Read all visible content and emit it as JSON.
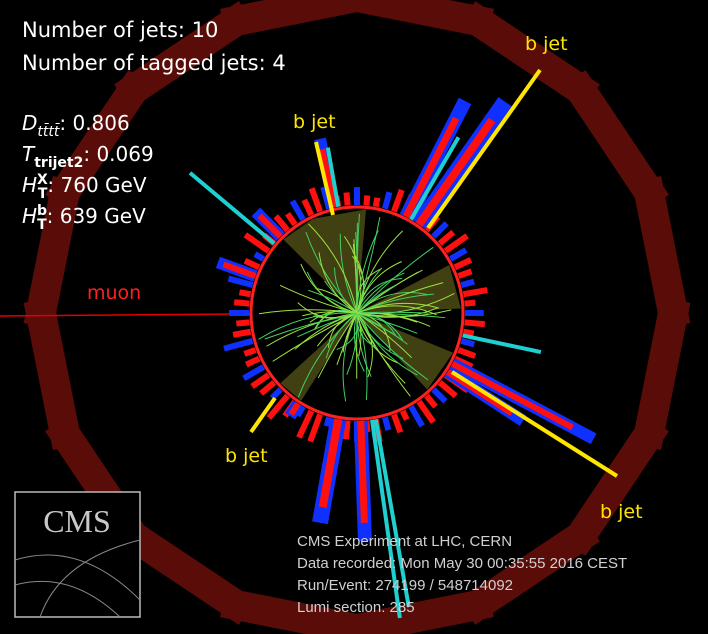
{
  "header": {
    "jets": "Number of jets: 10",
    "tagged_jets": "Number of tagged jets: 4"
  },
  "variables": [
    {
      "symbol": "D",
      "sub": "tt̄tt̄",
      "sup": "",
      "value": ": 0.806"
    },
    {
      "symbol": "T",
      "sub": "trijet2",
      "sup": "",
      "value": ": 0.069"
    },
    {
      "symbol": "H",
      "sub": "T",
      "sup": "X",
      "value": ": 760 GeV"
    },
    {
      "symbol": "H",
      "sub": "T",
      "sup": "b",
      "value": ": 639 GeV"
    }
  ],
  "labels": {
    "b_jets": [
      "b jet",
      "b jet",
      "b jet",
      "b jet"
    ],
    "muon": "muon"
  },
  "logo": "CMS",
  "info": [
    "CMS Experiment at LHC, CERN",
    "Data recorded: Mon May 30 00:35:55 2016 CEST",
    "Run/Event: 274199 / 548714092",
    "Lumi section: 285"
  ]
}
